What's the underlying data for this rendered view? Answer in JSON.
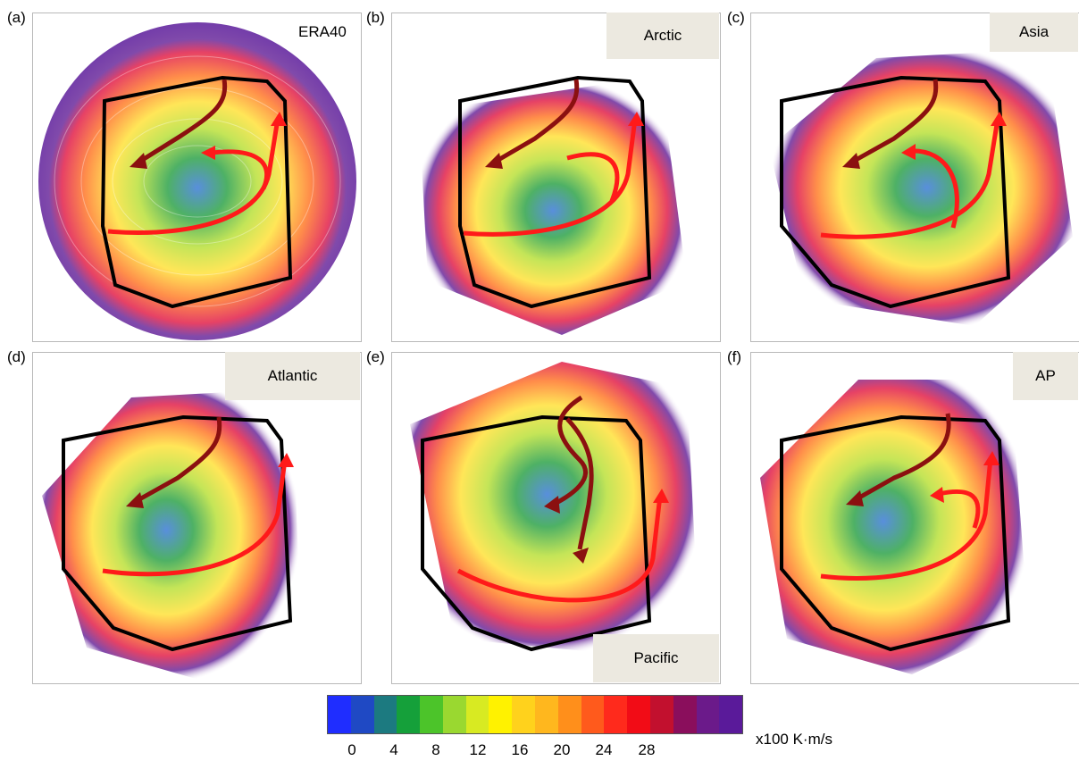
{
  "panels": [
    {
      "letter": "(a)",
      "label": "ERA40",
      "label_style": "plain"
    },
    {
      "letter": "(b)",
      "label": "Arctic",
      "label_style": "boxed"
    },
    {
      "letter": "(c)",
      "label": "Asia",
      "label_style": "boxed"
    },
    {
      "letter": "(d)",
      "label": "Atlantic",
      "label_style": "boxed"
    },
    {
      "letter": "(e)",
      "label": "Pacific",
      "label_style": "boxed"
    },
    {
      "letter": "(f)",
      "label": "AP",
      "label_style": "boxed"
    }
  ],
  "colorbar": {
    "colors": [
      "#1f2dff",
      "#1f49c4",
      "#1c7a80",
      "#15a03a",
      "#4cc42a",
      "#9ad830",
      "#d8ea22",
      "#fff200",
      "#ffd21c",
      "#ffb71e",
      "#ff8f1b",
      "#ff5a1c",
      "#ff2a1c",
      "#f20c16",
      "#c2102e",
      "#8a0e5c",
      "#6b1a8a",
      "#5a1a9a"
    ],
    "ticks": [
      "0",
      "4",
      "8",
      "12",
      "16",
      "20",
      "24",
      "28"
    ],
    "units": "x100 K·m/s"
  },
  "colors": {
    "flow_outer": "#6a2a9c",
    "arrow_dark": "#8b1010",
    "arrow_bright": "#ff1a1a",
    "box_outline": "#000000",
    "label_bg": "#ece9e0"
  }
}
